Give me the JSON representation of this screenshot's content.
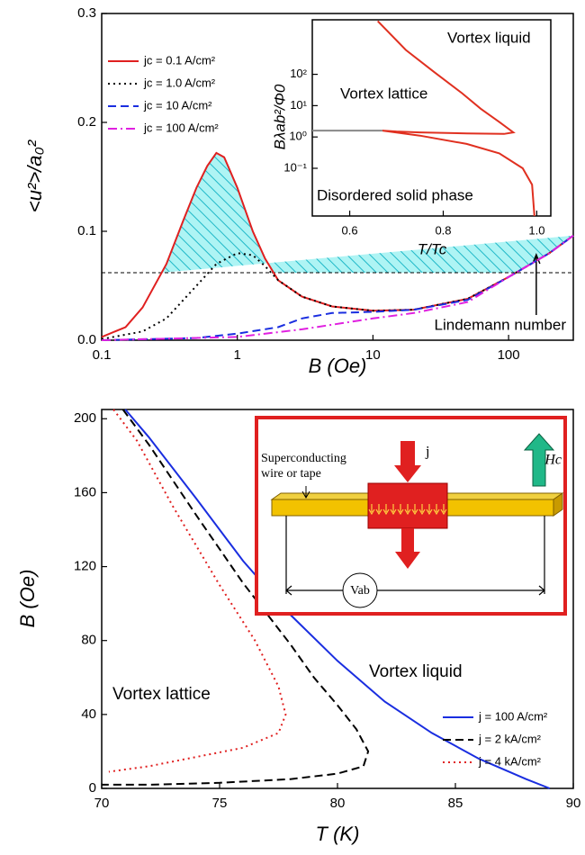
{
  "chart_data": [
    {
      "type": "line",
      "xlog": true,
      "xlabel": "B (Oe)",
      "ylabel": "<u²>/a₀²",
      "xlim": [
        0.1,
        300
      ],
      "ylim": [
        0,
        0.3
      ],
      "xticks": [
        0.1,
        1,
        10,
        100
      ],
      "yticks": [
        {
          "value": 0,
          "label": "0.0"
        },
        0.1,
        0.2,
        0.3
      ],
      "legend": "upper left",
      "reference_line": {
        "value": 0.062,
        "label": "Lindemann number"
      },
      "series": [
        {
          "name": "jc = 0.1 A/cm²",
          "color": "#e02020",
          "dash": "solid",
          "x": [
            0.1,
            0.15,
            0.2,
            0.3,
            0.4,
            0.5,
            0.6,
            0.7,
            0.8,
            1,
            1.3,
            1.6,
            2,
            3,
            5,
            10,
            20,
            50,
            100,
            200,
            300
          ],
          "values": [
            0.003,
            0.012,
            0.03,
            0.07,
            0.11,
            0.14,
            0.16,
            0.172,
            0.168,
            0.14,
            0.1,
            0.075,
            0.055,
            0.04,
            0.031,
            0.027,
            0.028,
            0.038,
            0.058,
            0.08,
            0.096
          ]
        },
        {
          "name": "jc = 1.0 A/cm²",
          "color": "#000000",
          "dash": "dot",
          "x": [
            0.1,
            0.2,
            0.3,
            0.5,
            0.7,
            1,
            1.3,
            1.6,
            2,
            3,
            5,
            10,
            20,
            50,
            100,
            200,
            300
          ],
          "values": [
            0.001,
            0.008,
            0.02,
            0.05,
            0.07,
            0.08,
            0.078,
            0.068,
            0.055,
            0.04,
            0.031,
            0.027,
            0.028,
            0.038,
            0.058,
            0.08,
            0.096
          ]
        },
        {
          "name": "jc = 10 A/cm²",
          "color": "#1a2ee0",
          "dash": "dash",
          "x": [
            0.1,
            0.5,
            1,
            2,
            3,
            5,
            10,
            20,
            50,
            100,
            200,
            300
          ],
          "values": [
            0,
            0.002,
            0.006,
            0.012,
            0.02,
            0.025,
            0.026,
            0.028,
            0.037,
            0.058,
            0.08,
            0.096
          ]
        },
        {
          "name": "jc = 100 A/cm²",
          "color": "#e020e0",
          "dash": "dashdot",
          "x": [
            0.1,
            1,
            3,
            10,
            20,
            50,
            100,
            200,
            300
          ],
          "values": [
            0,
            0.003,
            0.01,
            0.02,
            0.025,
            0.035,
            0.058,
            0.08,
            0.096
          ]
        }
      ]
    },
    {
      "type": "line",
      "ylog": true,
      "xlabel": "T/Tc",
      "ylabel": "Bλab²/Φ0",
      "xlim": [
        0.52,
        1.03
      ],
      "ylim": [
        0.003,
        5500
      ],
      "xticks": [
        0.6,
        0.8,
        {
          "value": 1,
          "label": "1.0"
        }
      ],
      "yticks": [
        {
          "value": 0.1,
          "label": "10⁻¹"
        },
        {
          "value": 1,
          "label": "10⁰"
        },
        {
          "value": 10,
          "label": "10¹"
        },
        {
          "value": 100,
          "label": "10²"
        }
      ],
      "annotations": [
        "Vortex liquid",
        "Vortex lattice",
        "Disordered solid phase"
      ],
      "series": [
        {
          "color": "#e03020",
          "dash": "solid",
          "x": [
            0.66,
            0.72,
            0.78,
            0.84,
            0.88,
            0.92,
            0.95,
            0.93,
            0.85,
            0.75,
            0.7,
            0.67,
            0.75,
            0.85,
            0.92,
            0.97,
            0.99,
            0.995
          ],
          "values": [
            5000,
            600,
            120,
            25,
            8,
            3,
            1.4,
            1.25,
            1.3,
            1.4,
            1.5,
            1.6,
            1.1,
            0.6,
            0.3,
            0.1,
            0.03,
            0.003
          ]
        },
        {
          "color": "#888888",
          "dash": "solid",
          "x": [
            0.52,
            0.67
          ],
          "values": [
            1.6,
            1.6
          ]
        }
      ]
    },
    {
      "type": "line",
      "xlabel": "T (K)",
      "ylabel": "B (Oe)",
      "xlim": [
        70,
        90
      ],
      "ylim": [
        0,
        205
      ],
      "xticks": [
        70,
        75,
        80,
        85,
        90
      ],
      "yticks": [
        0,
        40,
        80,
        120,
        160,
        200
      ],
      "legend": "lower right",
      "annotations": [
        "Vortex liquid",
        "Vortex lattice"
      ],
      "inset": {
        "wire_label": [
          "Superconducting",
          "wire or tape"
        ],
        "current": "j",
        "field": "Hc",
        "voltage": "Vab"
      },
      "series": [
        {
          "name": "j = 100 A/cm²",
          "color": "#1a2ee0",
          "dash": "solid",
          "x": [
            71,
            72,
            74,
            76,
            78,
            80,
            82,
            84,
            86,
            88,
            89
          ],
          "values": [
            205,
            190,
            157,
            123,
            94,
            69,
            47,
            30,
            16,
            5,
            0
          ]
        },
        {
          "name": "j = 2 kA/cm²",
          "color": "#000000",
          "dash": "dash",
          "x": [
            70.9,
            72,
            74,
            76,
            78,
            79,
            80,
            80.8,
            81.3,
            81.1,
            80,
            78,
            75,
            72,
            70
          ],
          "values": [
            205,
            186,
            148,
            111,
            78,
            60,
            45,
            32,
            20,
            12,
            8,
            5,
            3,
            2,
            2
          ]
        },
        {
          "name": "j = 4 kA/cm²",
          "color": "#e02020",
          "dash": "dot",
          "x": [
            70.5,
            71.5,
            73,
            75,
            76.5,
            77.5,
            77.8,
            77.5,
            76,
            74,
            72,
            70.3
          ],
          "values": [
            205,
            188,
            153,
            110,
            80,
            55,
            40,
            30,
            22,
            17,
            12,
            9
          ]
        }
      ]
    }
  ]
}
